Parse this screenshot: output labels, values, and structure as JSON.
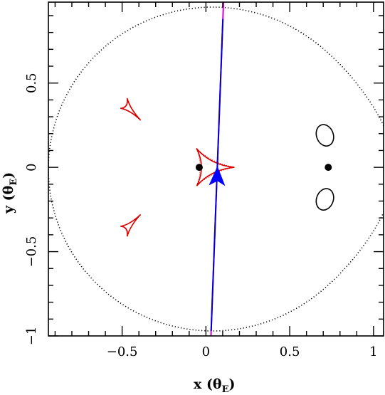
{
  "chart_data": {
    "type": "line",
    "title": "",
    "xlabel": {
      "main": "x (θ",
      "sub": "E",
      "close": ")"
    },
    "ylabel": {
      "main": "y (θ",
      "sub": "E",
      "close": ")"
    },
    "xlim": [
      -0.94,
      1.06
    ],
    "ylim": [
      -1.0,
      0.98
    ],
    "xticks": [
      {
        "value": -0.5,
        "label": "−0.5"
      },
      {
        "value": 0,
        "label": "0"
      },
      {
        "value": 0.5,
        "label": "0.5"
      },
      {
        "value": 1,
        "label": "1"
      }
    ],
    "yticks": [
      {
        "value": -1,
        "label": "−1"
      },
      {
        "value": -0.5,
        "label": "−0.5"
      },
      {
        "value": 0,
        "label": "0"
      },
      {
        "value": 0.5,
        "label": "0.5"
      }
    ],
    "colors": {
      "source_trajectory_a": "#d100d1",
      "source_trajectory_b": "#0000cc",
      "caustics": "#dd0000",
      "critical_curves": "#000000",
      "source_marker": "#0000ff",
      "lens_positions": "#000000"
    },
    "lens_positions": [
      {
        "x": -0.04,
        "y": 0.0
      },
      {
        "x": 0.73,
        "y": 0.0
      }
    ],
    "source_marker": {
      "x": 0.06,
      "y": -0.06,
      "shape": "arrow"
    },
    "source_trajectory": {
      "start": {
        "x": 0.03,
        "y": -1.0
      },
      "end": {
        "x": 0.105,
        "y": 0.98
      },
      "blue_range_y": [
        -0.97,
        0.88
      ]
    },
    "critical_curves": {
      "outer_dotted": {
        "center": {
          "x": 0.04,
          "y": -0.01
        },
        "radius": 0.98,
        "bulge": {
          "x": 1.0,
          "y": 0.0,
          "strength": 0.1
        }
      },
      "small_ovals": [
        {
          "cx": 0.71,
          "cy": 0.19,
          "rx": 0.05,
          "ry": 0.065
        },
        {
          "cx": 0.71,
          "cy": -0.19,
          "rx": 0.05,
          "ry": 0.065
        }
      ]
    },
    "caustics": [
      {
        "kind": "triangle",
        "cx": -0.47,
        "cy": 0.355,
        "points": [
          [
            -0.39,
            0.28
          ],
          [
            -0.51,
            0.35
          ],
          [
            -0.47,
            0.41
          ]
        ]
      },
      {
        "kind": "triangle",
        "cx": -0.47,
        "cy": -0.355,
        "points": [
          [
            -0.39,
            -0.28
          ],
          [
            -0.51,
            -0.35
          ],
          [
            -0.47,
            -0.41
          ]
        ]
      },
      {
        "kind": "central",
        "points": [
          [
            -0.055,
            0.11
          ],
          [
            0.17,
            0.0
          ],
          [
            -0.055,
            -0.11
          ]
        ]
      }
    ]
  }
}
